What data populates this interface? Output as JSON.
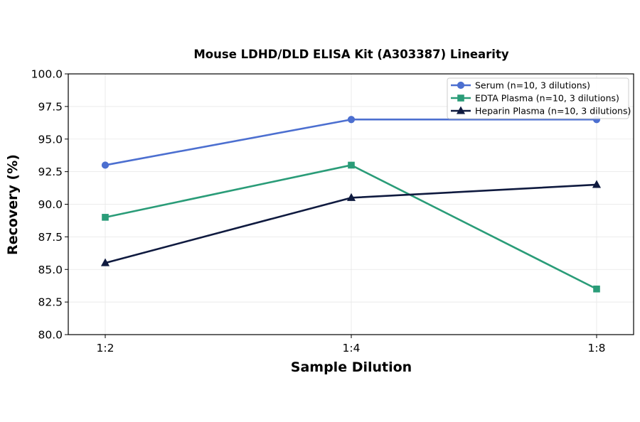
{
  "chart_data": {
    "type": "line",
    "title": "Mouse LDHD/DLD ELISA Kit (A303387) Linearity",
    "xlabel": "Sample Dilution",
    "ylabel": "Recovery (%)",
    "categories": [
      "1:2",
      "1:4",
      "1:8"
    ],
    "ylim": [
      80.0,
      100.0
    ],
    "yticks": [
      "80.0",
      "82.5",
      "85.0",
      "87.5",
      "90.0",
      "92.5",
      "95.0",
      "97.5",
      "100.0"
    ],
    "grid": true,
    "legend_position": "top-right",
    "series": [
      {
        "name": "Serum (n=10, 3 dilutions)",
        "values": [
          93.0,
          96.5,
          96.5
        ],
        "color": "#4c6fd0",
        "marker": "circle"
      },
      {
        "name": "EDTA Plasma (n=10, 3 dilutions)",
        "values": [
          89.0,
          93.0,
          83.5
        ],
        "color": "#2a9c78",
        "marker": "square"
      },
      {
        "name": "Heparin Plasma (n=10, 3 dilutions)",
        "values": [
          85.5,
          90.5,
          91.5
        ],
        "color": "#0f1a3f",
        "marker": "triangle"
      }
    ]
  }
}
